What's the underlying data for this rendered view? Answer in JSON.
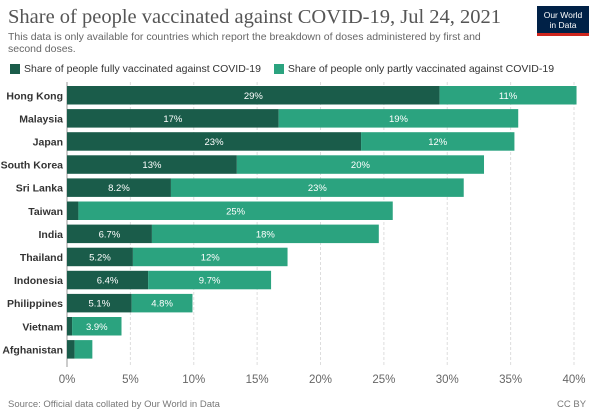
{
  "title": "Share of people vaccinated against COVID-19, Jul 24, 2021",
  "subtitle": "This data is only available for countries which report the breakdown of doses administered by first and second doses.",
  "logo": {
    "line1": "Our World",
    "line2": "in Data"
  },
  "source": "Source: Official data collated by Our World in Data",
  "license": "CC BY",
  "colors": {
    "fully": "#1a5c4a",
    "partly": "#2ba37f",
    "grid": "#dddddd",
    "axis": "#666666"
  },
  "chart_data": {
    "type": "bar",
    "orientation": "horizontal",
    "stacked": true,
    "unit": "%",
    "categories": [
      "Hong Kong",
      "Malaysia",
      "Japan",
      "South Korea",
      "Sri Lanka",
      "Taiwan",
      "India",
      "Thailand",
      "Indonesia",
      "Philippines",
      "Vietnam",
      "Afghanistan"
    ],
    "series": [
      {
        "name": "Share of people fully vaccinated against COVID-19",
        "values": [
          29.4,
          16.7,
          23.2,
          13.4,
          8.2,
          0.9,
          6.7,
          5.2,
          6.4,
          5.1,
          0.4,
          0.6
        ],
        "labels": [
          "29%",
          "17%",
          "23%",
          "13%",
          "8.2%",
          "",
          "6.7%",
          "5.2%",
          "6.4%",
          "5.1%",
          "",
          ""
        ]
      },
      {
        "name": "Share of people only partly vaccinated against COVID-19",
        "values": [
          10.8,
          18.9,
          12.1,
          19.5,
          23.1,
          24.8,
          17.9,
          12.2,
          9.7,
          4.8,
          3.9,
          1.4
        ],
        "labels": [
          "11%",
          "19%",
          "12%",
          "20%",
          "23%",
          "25%",
          "18%",
          "12%",
          "9.7%",
          "4.8%",
          "3.9%",
          ""
        ]
      }
    ],
    "xlim": [
      0,
      40
    ],
    "xticks": [
      0,
      5,
      10,
      15,
      20,
      25,
      30,
      35,
      40
    ],
    "xtick_labels": [
      "0%",
      "5%",
      "10%",
      "15%",
      "20%",
      "25%",
      "30%",
      "35%",
      "40%"
    ],
    "grid": true,
    "legend_position": "top-left"
  }
}
